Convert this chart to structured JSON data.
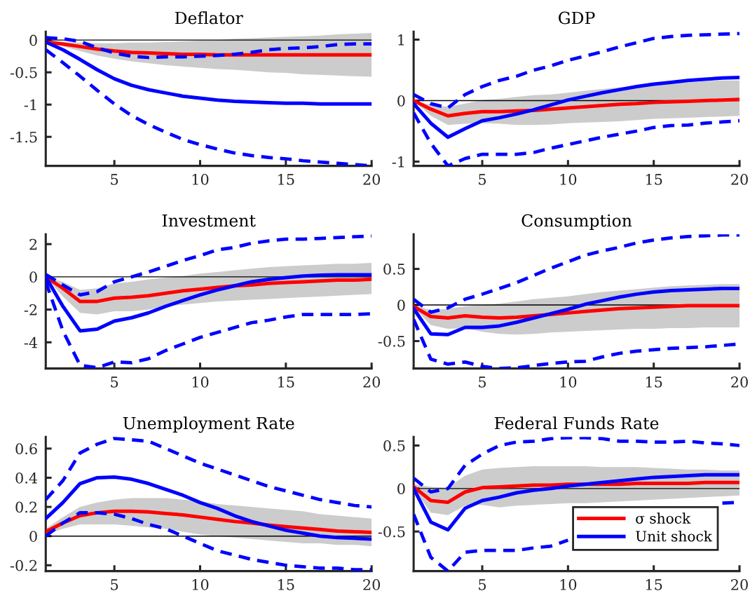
{
  "chart_data": [
    {
      "type": "line",
      "title": "Deflator",
      "x": [
        1,
        2,
        3,
        4,
        5,
        6,
        7,
        8,
        9,
        10,
        11,
        12,
        13,
        14,
        15,
        16,
        17,
        18,
        19,
        20
      ],
      "xlim": [
        1,
        20
      ],
      "xticks": [
        5,
        10,
        15,
        20
      ],
      "ylim": [
        -1.95,
        0.13
      ],
      "yticks": [
        -1.5,
        -1,
        -0.5,
        0
      ],
      "grid": false,
      "ref_lines": [
        {
          "axis": "y",
          "value": 0,
          "color": "#000000"
        }
      ],
      "series": [
        {
          "color": "#ff0000",
          "values": [
            -0.03,
            -0.06,
            -0.1,
            -0.14,
            -0.17,
            -0.19,
            -0.2,
            -0.21,
            -0.22,
            -0.22,
            -0.23,
            -0.23,
            -0.23,
            -0.23,
            -0.23,
            -0.23,
            -0.23,
            -0.23,
            -0.23,
            -0.23
          ],
          "lower": [
            -0.03,
            -0.1,
            -0.17,
            -0.24,
            -0.29,
            -0.33,
            -0.36,
            -0.39,
            -0.41,
            -0.43,
            -0.45,
            -0.46,
            -0.48,
            -0.5,
            -0.51,
            -0.53,
            -0.54,
            -0.55,
            -0.56,
            -0.57
          ],
          "upper": [
            0,
            -0.03,
            -0.04,
            -0.05,
            -0.05,
            -0.04,
            -0.04,
            -0.03,
            -0.02,
            -0.01,
            0,
            0.02,
            0.03,
            0.04,
            0.05,
            0.06,
            0.07,
            0.09,
            0.1,
            0.11
          ]
        },
        {
          "color": "#0000ff",
          "values": [
            -0.03,
            -0.15,
            -0.3,
            -0.46,
            -0.6,
            -0.7,
            -0.77,
            -0.82,
            -0.87,
            -0.9,
            -0.93,
            -0.95,
            -0.96,
            -0.97,
            -0.98,
            -0.98,
            -0.99,
            -0.99,
            -0.99,
            -0.99
          ]
        },
        {
          "color": "#0000ff",
          "line_style": "dashed",
          "values": [
            0.04,
            0.02,
            -0.02,
            -0.12,
            -0.2,
            -0.25,
            -0.27,
            -0.26,
            -0.26,
            -0.25,
            -0.24,
            -0.22,
            -0.19,
            -0.15,
            -0.13,
            -0.12,
            -0.1,
            -0.07,
            -0.06,
            -0.06
          ]
        },
        {
          "color": "#0000ff",
          "line_style": "dashed",
          "values": [
            -0.15,
            -0.35,
            -0.56,
            -0.78,
            -0.99,
            -1.17,
            -1.31,
            -1.43,
            -1.54,
            -1.62,
            -1.69,
            -1.75,
            -1.79,
            -1.82,
            -1.84,
            -1.87,
            -1.89,
            -1.91,
            -1.93,
            -1.95
          ]
        }
      ]
    },
    {
      "type": "line",
      "title": "GDP",
      "x": [
        1,
        2,
        3,
        4,
        5,
        6,
        7,
        8,
        9,
        10,
        11,
        12,
        13,
        14,
        15,
        16,
        17,
        18,
        19,
        20
      ],
      "xlim": [
        1,
        20
      ],
      "xticks": [
        5,
        10,
        15,
        20
      ],
      "ylim": [
        -1.07,
        1.13
      ],
      "yticks": [
        -1,
        0,
        1
      ],
      "grid": false,
      "ref_lines": [
        {
          "axis": "y",
          "value": 0,
          "color": "#000000"
        }
      ],
      "series": [
        {
          "color": "#ff0000",
          "values": [
            0,
            -0.14,
            -0.25,
            -0.21,
            -0.18,
            -0.18,
            -0.17,
            -0.16,
            -0.14,
            -0.12,
            -0.1,
            -0.08,
            -0.06,
            -0.05,
            -0.03,
            -0.02,
            -0.01,
            0,
            0.01,
            0.02
          ],
          "lower": [
            0,
            -0.25,
            -0.4,
            -0.38,
            -0.37,
            -0.38,
            -0.4,
            -0.4,
            -0.39,
            -0.37,
            -0.36,
            -0.35,
            -0.34,
            -0.32,
            -0.3,
            -0.29,
            -0.28,
            -0.27,
            -0.26,
            -0.25
          ],
          "upper": [
            0,
            -0.07,
            -0.1,
            -0.05,
            0.01,
            0.03,
            0.06,
            0.09,
            0.1,
            0.13,
            0.16,
            0.19,
            0.22,
            0.24,
            0.26,
            0.28,
            0.3,
            0.32,
            0.33,
            0.33
          ]
        },
        {
          "color": "#0000ff",
          "values": [
            -0.05,
            -0.37,
            -0.6,
            -0.46,
            -0.33,
            -0.28,
            -0.22,
            -0.15,
            -0.07,
            0.01,
            0.07,
            0.13,
            0.18,
            0.23,
            0.27,
            0.3,
            0.33,
            0.35,
            0.37,
            0.38
          ]
        },
        {
          "color": "#0000ff",
          "line_style": "dashed",
          "values": [
            0.1,
            -0.05,
            -0.12,
            0.1,
            0.23,
            0.33,
            0.4,
            0.5,
            0.57,
            0.66,
            0.73,
            0.8,
            0.88,
            0.95,
            1.02,
            1.05,
            1.07,
            1.08,
            1.09,
            1.1
          ]
        },
        {
          "color": "#0000ff",
          "line_style": "dashed",
          "values": [
            -0.2,
            -0.7,
            -1.07,
            -0.95,
            -0.88,
            -0.88,
            -0.88,
            -0.85,
            -0.78,
            -0.72,
            -0.66,
            -0.6,
            -0.55,
            -0.5,
            -0.44,
            -0.41,
            -0.4,
            -0.37,
            -0.35,
            -0.33
          ]
        }
      ]
    },
    {
      "type": "line",
      "title": "Investment",
      "x": [
        1,
        2,
        3,
        4,
        5,
        6,
        7,
        8,
        9,
        10,
        11,
        12,
        13,
        14,
        15,
        16,
        17,
        18,
        19,
        20
      ],
      "xlim": [
        1,
        20
      ],
      "xticks": [
        5,
        10,
        15,
        20
      ],
      "ylim": [
        -5.6,
        2.6
      ],
      "yticks": [
        -4,
        -2,
        0,
        2
      ],
      "grid": false,
      "ref_lines": [
        {
          "axis": "y",
          "value": 0,
          "color": "#000000"
        }
      ],
      "series": [
        {
          "color": "#ff0000",
          "values": [
            0,
            -0.7,
            -1.5,
            -1.5,
            -1.3,
            -1.25,
            -1.15,
            -1.0,
            -0.85,
            -0.75,
            -0.65,
            -0.55,
            -0.5,
            -0.4,
            -0.35,
            -0.3,
            -0.25,
            -0.2,
            -0.2,
            -0.15
          ],
          "lower": [
            0,
            -1.2,
            -2.2,
            -2.3,
            -2.1,
            -2.1,
            -2.0,
            -1.8,
            -1.7,
            -1.6,
            -1.5,
            -1.45,
            -1.4,
            -1.35,
            -1.3,
            -1.25,
            -1.2,
            -1.15,
            -1.1,
            -1.05
          ],
          "upper": [
            0,
            -0.3,
            -0.8,
            -0.7,
            -0.4,
            -0.3,
            -0.15,
            -0.05,
            0.05,
            0.2,
            0.3,
            0.4,
            0.5,
            0.6,
            0.65,
            0.7,
            0.75,
            0.8,
            0.8,
            0.85
          ]
        },
        {
          "color": "#0000ff",
          "values": [
            0,
            -1.8,
            -3.3,
            -3.2,
            -2.7,
            -2.5,
            -2.2,
            -1.8,
            -1.45,
            -1.1,
            -0.8,
            -0.55,
            -0.3,
            -0.15,
            -0.05,
            0.05,
            0.1,
            0.12,
            0.12,
            0.12
          ]
        },
        {
          "color": "#0000ff",
          "line_style": "dashed",
          "values": [
            0.15,
            -0.5,
            -1.1,
            -0.9,
            -0.3,
            0.0,
            0.3,
            0.65,
            1.0,
            1.3,
            1.65,
            1.8,
            2.05,
            2.2,
            2.3,
            2.3,
            2.35,
            2.4,
            2.45,
            2.5
          ]
        },
        {
          "color": "#0000ff",
          "line_style": "dashed",
          "values": [
            -0.3,
            -3.3,
            -5.4,
            -5.55,
            -5.2,
            -5.25,
            -5.0,
            -4.5,
            -4.1,
            -3.7,
            -3.4,
            -3.1,
            -2.8,
            -2.65,
            -2.45,
            -2.3,
            -2.3,
            -2.3,
            -2.3,
            -2.25
          ]
        }
      ]
    },
    {
      "type": "line",
      "title": "Consumption",
      "x": [
        1,
        2,
        3,
        4,
        5,
        6,
        7,
        8,
        9,
        10,
        11,
        12,
        13,
        14,
        15,
        16,
        17,
        18,
        19,
        20
      ],
      "xlim": [
        1,
        20
      ],
      "xticks": [
        5,
        10,
        15,
        20
      ],
      "ylim": [
        -0.88,
        0.98
      ],
      "yticks": [
        -0.5,
        0,
        0.5
      ],
      "grid": false,
      "ref_lines": [
        {
          "axis": "y",
          "value": 0,
          "color": "#000000"
        }
      ],
      "series": [
        {
          "color": "#ff0000",
          "values": [
            -0.02,
            -0.16,
            -0.18,
            -0.15,
            -0.17,
            -0.18,
            -0.17,
            -0.15,
            -0.13,
            -0.11,
            -0.09,
            -0.07,
            -0.05,
            -0.04,
            -0.03,
            -0.02,
            -0.01,
            -0.01,
            -0.01,
            -0.01
          ],
          "lower": [
            -0.03,
            -0.28,
            -0.33,
            -0.32,
            -0.37,
            -0.4,
            -0.41,
            -0.4,
            -0.38,
            -0.37,
            -0.36,
            -0.35,
            -0.34,
            -0.33,
            -0.33,
            -0.32,
            -0.32,
            -0.31,
            -0.31,
            -0.31
          ],
          "upper": [
            0,
            -0.07,
            -0.05,
            -0.02,
            0,
            0.02,
            0.05,
            0.08,
            0.1,
            0.12,
            0.15,
            0.18,
            0.2,
            0.22,
            0.24,
            0.26,
            0.27,
            0.28,
            0.29,
            0.29
          ]
        },
        {
          "color": "#0000ff",
          "values": [
            -0.05,
            -0.4,
            -0.41,
            -0.31,
            -0.31,
            -0.29,
            -0.24,
            -0.18,
            -0.12,
            -0.06,
            0.01,
            0.06,
            0.11,
            0.15,
            0.18,
            0.2,
            0.21,
            0.22,
            0.23,
            0.23
          ]
        },
        {
          "color": "#0000ff",
          "line_style": "dashed",
          "values": [
            0.08,
            -0.1,
            -0.04,
            0.08,
            0.15,
            0.23,
            0.31,
            0.41,
            0.51,
            0.6,
            0.69,
            0.75,
            0.8,
            0.86,
            0.9,
            0.93,
            0.95,
            0.96,
            0.97,
            0.97
          ]
        },
        {
          "color": "#0000ff",
          "line_style": "dashed",
          "values": [
            -0.2,
            -0.75,
            -0.82,
            -0.79,
            -0.85,
            -0.88,
            -0.87,
            -0.84,
            -0.81,
            -0.79,
            -0.78,
            -0.72,
            -0.67,
            -0.64,
            -0.62,
            -0.6,
            -0.59,
            -0.58,
            -0.56,
            -0.54
          ]
        }
      ]
    },
    {
      "type": "line",
      "title": "Unemployment Rate",
      "x": [
        1,
        2,
        3,
        4,
        5,
        6,
        7,
        8,
        9,
        10,
        11,
        12,
        13,
        14,
        15,
        16,
        17,
        18,
        19,
        20
      ],
      "xlim": [
        1,
        20
      ],
      "xticks": [
        5,
        10,
        15,
        20
      ],
      "ylim": [
        -0.24,
        0.68
      ],
      "yticks": [
        -0.2,
        0,
        0.2,
        0.4,
        0.6
      ],
      "grid": false,
      "ref_lines": [
        {
          "axis": "y",
          "value": 0,
          "color": "#000000"
        }
      ],
      "series": [
        {
          "color": "#ff0000",
          "values": [
            0.03,
            0.09,
            0.14,
            0.16,
            0.17,
            0.17,
            0.165,
            0.155,
            0.145,
            0.13,
            0.115,
            0.1,
            0.09,
            0.075,
            0.065,
            0.055,
            0.045,
            0.035,
            0.03,
            0.025
          ],
          "lower": [
            0.01,
            0.05,
            0.08,
            0.08,
            0.08,
            0.07,
            0.06,
            0.05,
            0.03,
            0.01,
            0.0,
            -0.01,
            -0.02,
            -0.03,
            -0.04,
            -0.05,
            -0.05,
            -0.06,
            -0.06,
            -0.07
          ],
          "upper": [
            0.05,
            0.13,
            0.2,
            0.23,
            0.25,
            0.26,
            0.26,
            0.26,
            0.25,
            0.24,
            0.22,
            0.21,
            0.2,
            0.19,
            0.18,
            0.17,
            0.15,
            0.14,
            0.13,
            0.12
          ]
        },
        {
          "color": "#0000ff",
          "values": [
            0.12,
            0.23,
            0.36,
            0.4,
            0.405,
            0.39,
            0.36,
            0.32,
            0.28,
            0.23,
            0.19,
            0.14,
            0.1,
            0.07,
            0.04,
            0.02,
            0.0,
            -0.01,
            -0.015,
            -0.02
          ]
        },
        {
          "color": "#0000ff",
          "line_style": "dashed",
          "values": [
            0.25,
            0.38,
            0.57,
            0.63,
            0.67,
            0.66,
            0.65,
            0.6,
            0.55,
            0.5,
            0.46,
            0.42,
            0.38,
            0.34,
            0.31,
            0.28,
            0.25,
            0.23,
            0.21,
            0.2
          ]
        },
        {
          "color": "#0000ff",
          "line_style": "dashed",
          "values": [
            0.0,
            0.09,
            0.16,
            0.16,
            0.15,
            0.12,
            0.08,
            0.05,
            0.0,
            -0.05,
            -0.1,
            -0.13,
            -0.16,
            -0.18,
            -0.2,
            -0.21,
            -0.22,
            -0.22,
            -0.23,
            -0.23
          ]
        }
      ]
    },
    {
      "type": "line",
      "title": "Federal Funds Rate",
      "x": [
        1,
        2,
        3,
        4,
        5,
        6,
        7,
        8,
        9,
        10,
        11,
        12,
        13,
        14,
        15,
        16,
        17,
        18,
        19,
        20
      ],
      "xlim": [
        1,
        20
      ],
      "xticks": [
        5,
        10,
        15,
        20
      ],
      "ylim": [
        -0.96,
        0.6
      ],
      "yticks": [
        -0.5,
        0,
        0.5
      ],
      "grid": false,
      "legend": "bottom right",
      "ref_lines": [
        {
          "axis": "y",
          "value": 0,
          "color": "#000000"
        }
      ],
      "series": [
        {
          "name": "σ shock",
          "color": "#ff0000",
          "values": [
            0.02,
            -0.14,
            -0.16,
            -0.04,
            0.01,
            0.02,
            0.03,
            0.04,
            0.04,
            0.05,
            0.05,
            0.05,
            0.05,
            0.06,
            0.06,
            0.06,
            0.06,
            0.07,
            0.07,
            0.07
          ],
          "lower": [
            0,
            -0.28,
            -0.31,
            -0.2,
            -0.19,
            -0.22,
            -0.2,
            -0.19,
            -0.18,
            -0.17,
            -0.17,
            -0.16,
            -0.15,
            -0.14,
            -0.13,
            -0.12,
            -0.11,
            -0.1,
            -0.09,
            -0.08
          ],
          "upper": [
            0.05,
            0.02,
            0.01,
            0.15,
            0.22,
            0.24,
            0.25,
            0.26,
            0.26,
            0.26,
            0.26,
            0.25,
            0.25,
            0.25,
            0.24,
            0.23,
            0.22,
            0.22,
            0.21,
            0.21
          ]
        },
        {
          "name": "Unit shock",
          "color": "#0000ff",
          "values": [
            0.0,
            -0.39,
            -0.48,
            -0.23,
            -0.14,
            -0.1,
            -0.05,
            -0.02,
            0.0,
            0.03,
            0.05,
            0.07,
            0.09,
            0.11,
            0.13,
            0.14,
            0.15,
            0.16,
            0.16,
            0.16
          ]
        },
        {
          "color": "#0000ff",
          "line_style": "dashed",
          "values": [
            0.12,
            -0.04,
            0.0,
            0.27,
            0.4,
            0.5,
            0.54,
            0.55,
            0.58,
            0.59,
            0.59,
            0.58,
            0.55,
            0.55,
            0.54,
            0.54,
            0.55,
            0.53,
            0.52,
            0.5
          ]
        },
        {
          "color": "#0000ff",
          "line_style": "dashed",
          "values": [
            -0.3,
            -0.8,
            -0.96,
            -0.74,
            -0.72,
            -0.72,
            -0.72,
            -0.69,
            -0.67,
            -0.6,
            null,
            null,
            null,
            null,
            null,
            null,
            null,
            null,
            -0.17,
            -0.16
          ]
        }
      ]
    }
  ]
}
